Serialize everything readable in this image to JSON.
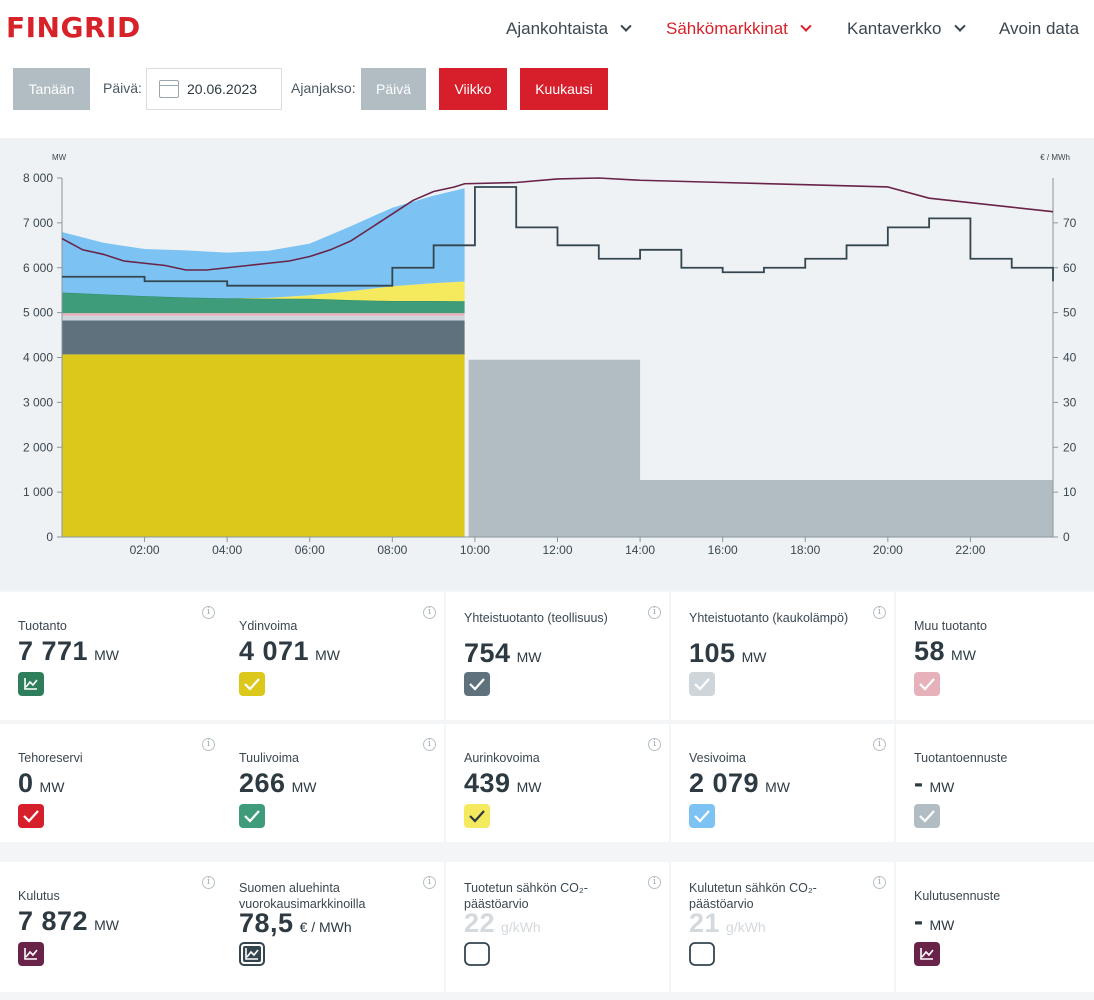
{
  "header": {
    "logo": "FINGRID",
    "nav": [
      {
        "label": "Ajankohtaista"
      },
      {
        "label": "Sähkömarkkinat"
      },
      {
        "label": "Kantaverkko"
      },
      {
        "label": "Avoin data"
      }
    ]
  },
  "controls": {
    "today": "Tanään",
    "day_label": "Päivä:",
    "date": "20.06.2023",
    "period_label": "Ajanjakso:",
    "period_day": "Päivä",
    "period_week": "Viikko",
    "period_month": "Kuukausi"
  },
  "colors": {
    "brand_red": "#d61f2a",
    "nuclear": "#dcc81b",
    "chp_industry": "#5f717c",
    "chp_district": "#cfd6db",
    "other": "#e7b1bc",
    "wind": "#3f9c7b",
    "solar": "#f5e95d",
    "hydro": "#7cc3f3",
    "forecast": "#b1bcc3",
    "consumption": "#6a2348"
  },
  "chart_data": {
    "type": "area",
    "left_axis_unit": "MW",
    "right_axis_unit": "€ / MWh",
    "ylim": [
      0,
      8000
    ],
    "y2lim": [
      0,
      80
    ],
    "y_ticks": [
      "0",
      "1 000",
      "2 000",
      "3 000",
      "4 000",
      "5 000",
      "6 000",
      "7 000",
      "8 000"
    ],
    "y2_ticks": [
      "0",
      "10",
      "20",
      "30",
      "40",
      "50",
      "60",
      "70"
    ],
    "x_ticks": [
      "02:00",
      "04:00",
      "06:00",
      "08:00",
      "10:00",
      "12:00",
      "14:00",
      "16:00",
      "18:00",
      "20:00",
      "22:00"
    ],
    "production_stack": {
      "hours": [
        0,
        1,
        2,
        3,
        4,
        5,
        6,
        7,
        8,
        9,
        9.75
      ],
      "series": [
        {
          "name": "Ydinvoima",
          "values": [
            4071,
            4071,
            4071,
            4071,
            4071,
            4071,
            4071,
            4071,
            4071,
            4071,
            4071
          ]
        },
        {
          "name": "Yhteistuotanto (teollisuus)",
          "values": [
            754,
            754,
            754,
            754,
            754,
            754,
            754,
            754,
            754,
            754,
            754
          ]
        },
        {
          "name": "Yhteistuotanto (kaukolämpö)",
          "values": [
            105,
            105,
            105,
            105,
            105,
            105,
            105,
            105,
            105,
            105,
            105
          ]
        },
        {
          "name": "Muu tuotanto",
          "values": [
            58,
            58,
            58,
            58,
            58,
            58,
            58,
            58,
            58,
            58,
            58
          ]
        },
        {
          "name": "Tuulivoima",
          "values": [
            460,
            420,
            380,
            350,
            330,
            320,
            320,
            290,
            270,
            270,
            266
          ]
        },
        {
          "name": "Aurinkovoima",
          "values": [
            0,
            0,
            0,
            0,
            0,
            20,
            80,
            200,
            330,
            400,
            439
          ]
        },
        {
          "name": "Vesivoima",
          "values": [
            1350,
            1150,
            1050,
            1050,
            1020,
            1050,
            1150,
            1450,
            1750,
            1950,
            2079
          ]
        }
      ]
    },
    "consumption_forecast": {
      "hours": [
        9.75,
        14,
        14,
        24
      ],
      "values": [
        3950,
        3950,
        1270,
        1270
      ]
    },
    "consumption_line": {
      "hours": [
        0,
        0.5,
        1,
        1.5,
        2,
        2.5,
        3,
        3.5,
        4,
        4.5,
        5,
        5.5,
        6,
        6.5,
        7,
        7.5,
        8,
        8.5,
        9,
        9.5,
        9.75,
        11,
        12,
        13,
        14,
        16,
        18,
        20,
        21,
        22,
        23,
        24
      ],
      "values": [
        6650,
        6400,
        6300,
        6150,
        6100,
        6050,
        5950,
        5950,
        6000,
        6050,
        6100,
        6150,
        6250,
        6400,
        6600,
        6900,
        7200,
        7500,
        7700,
        7800,
        7872,
        7900,
        7980,
        8000,
        7950,
        7900,
        7850,
        7800,
        7550,
        7450,
        7350,
        7250
      ]
    },
    "price_line": {
      "hours": [
        0,
        1,
        2,
        3,
        4,
        5,
        6,
        7,
        8,
        9,
        10,
        11,
        12,
        13,
        14,
        15,
        16,
        17,
        18,
        19,
        20,
        21,
        22,
        23,
        24
      ],
      "values": [
        58,
        58,
        57,
        57,
        56,
        56,
        56,
        56,
        60,
        65,
        78,
        69,
        65,
        62,
        64,
        60,
        59,
        60,
        62,
        65,
        69,
        71,
        62,
        60,
        57
      ]
    }
  },
  "tiles": {
    "row1": [
      {
        "title": "Tuotanto",
        "value": "7 771",
        "unit": "MW",
        "icon": "chart-icon"
      },
      {
        "title": "Ydinvoima",
        "value": "4 071",
        "unit": "MW",
        "icon": "check-icon"
      },
      {
        "title": "Yhteistuotanto (teollisuus)",
        "value": "754",
        "unit": "MW",
        "icon": "check-icon"
      },
      {
        "title": "Yhteistuotanto (kaukolämpö)",
        "value": "105",
        "unit": "MW",
        "icon": "check-icon"
      },
      {
        "title": "Muu tuotanto",
        "value": "58",
        "unit": "MW",
        "icon": "check-icon"
      }
    ],
    "row2": [
      {
        "title": "Tehoreservi",
        "value": "0",
        "unit": "MW",
        "icon": "check-icon"
      },
      {
        "title": "Tuulivoima",
        "value": "266",
        "unit": "MW",
        "icon": "check-icon"
      },
      {
        "title": "Aurinkovoima",
        "value": "439",
        "unit": "MW",
        "icon": "check-icon"
      },
      {
        "title": "Vesivoima",
        "value": "2 079",
        "unit": "MW",
        "icon": "check-icon"
      },
      {
        "title": "Tuotantoennuste",
        "value": "-",
        "unit": "MW",
        "icon": "check-icon"
      }
    ],
    "row3": [
      {
        "title": "Kulutus",
        "value": "7 872",
        "unit": "MW",
        "icon": "chart-icon"
      },
      {
        "title": "Suomen aluehinta vuorokausimarkkinoilla",
        "value": "78,5",
        "unit": "€ / MWh",
        "icon": "chart-icon"
      },
      {
        "title": "Tuotetun sähkön CO₂-päästöarvio",
        "value": "22",
        "unit": "g/kWh",
        "icon": "empty-checkbox-icon"
      },
      {
        "title": "Kulutetun sähkön CO₂-päästöarvio",
        "value": "21",
        "unit": "g/kWh",
        "icon": "empty-checkbox-icon"
      },
      {
        "title": "Kulutusennuste",
        "value": "-",
        "unit": "MW",
        "icon": "chart-icon"
      }
    ]
  }
}
